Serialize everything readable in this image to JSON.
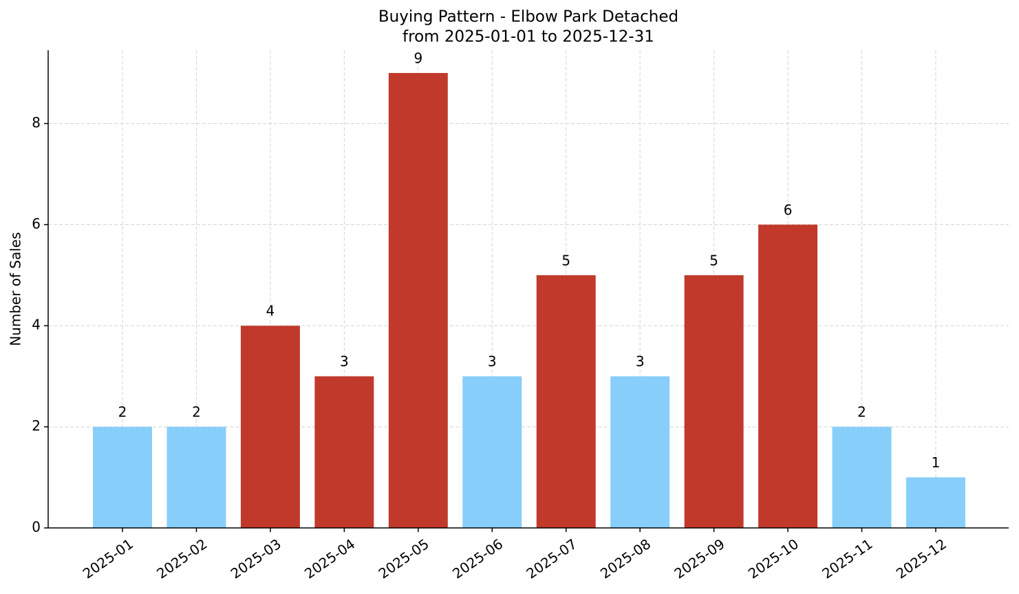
{
  "chart_data": {
    "type": "bar",
    "title": "Buying Pattern - Elbow Park Detached",
    "subtitle": "from 2025-01-01 to 2025-12-31",
    "y_label": "Number of Sales",
    "categories": [
      "2025-01",
      "2025-02",
      "2025-03",
      "2025-04",
      "2025-05",
      "2025-06",
      "2025-07",
      "2025-08",
      "2025-09",
      "2025-10",
      "2025-11",
      "2025-12"
    ],
    "values": [
      2,
      2,
      4,
      3,
      9,
      3,
      5,
      3,
      5,
      6,
      2,
      1
    ],
    "colors": [
      "#87cefa",
      "#87cefa",
      "#c0392b",
      "#c0392b",
      "#c0392b",
      "#87cefa",
      "#c0392b",
      "#87cefa",
      "#c0392b",
      "#c0392b",
      "#87cefa",
      "#87cefa"
    ],
    "ylim": [
      0,
      9.45
    ],
    "yticks": [
      0,
      2,
      4,
      6,
      8
    ],
    "grid": true
  }
}
